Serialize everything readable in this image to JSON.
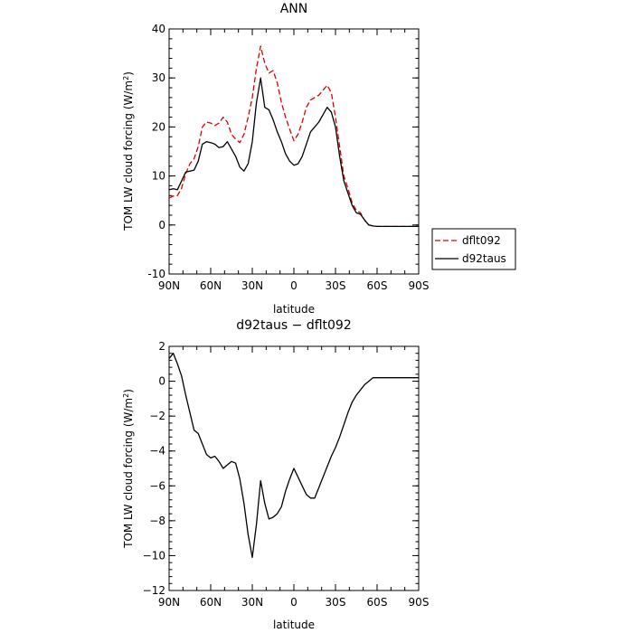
{
  "chart_data": [
    {
      "type": "line",
      "title": "ANN",
      "xlabel": "latitude",
      "ylabel": "TOM LW cloud forcing (W/m²)",
      "ylabel_main": "TOM LW cloud forcing (W/m",
      "ylabel_sup": "2",
      "ylabel_close": ")",
      "xlim": [
        90,
        -90
      ],
      "ylim": [
        -10,
        40
      ],
      "xticks": [
        90,
        60,
        30,
        0,
        -30,
        -60,
        -90
      ],
      "xtick_labels": [
        "90N",
        "60N",
        "30N",
        "0",
        "30S",
        "60S",
        "90S"
      ],
      "yticks": [
        -10,
        0,
        10,
        20,
        30,
        40
      ],
      "ytick_labels": [
        "-10",
        "0",
        "10",
        "20",
        "30",
        "40"
      ],
      "legend_position": "right",
      "series": [
        {
          "name": "dflt092",
          "color": "#e00000",
          "dash": "dashed",
          "x": [
            90,
            87,
            84,
            81,
            78,
            75,
            72,
            69,
            66,
            63,
            60,
            57,
            54,
            51,
            48,
            45,
            42,
            39,
            36,
            33,
            30,
            27,
            24,
            21,
            18,
            15,
            12,
            9,
            6,
            3,
            0,
            -3,
            -6,
            -9,
            -12,
            -15,
            -18,
            -21,
            -24,
            -27,
            -30,
            -33,
            -36,
            -39,
            -42,
            -45,
            -48,
            -51,
            -54,
            -57,
            -60,
            -63,
            -66,
            -69,
            -72,
            -75,
            -78,
            -81,
            -84,
            -87,
            -90
          ],
          "y": [
            5.5,
            5.9,
            6.0,
            7.5,
            10.5,
            12.5,
            13.5,
            16.0,
            20.0,
            21.0,
            20.8,
            20.3,
            20.8,
            22.0,
            21.0,
            18.5,
            17.5,
            16.8,
            18.5,
            22.0,
            26.0,
            32.0,
            36.5,
            33.0,
            31.0,
            31.5,
            29.0,
            25.0,
            22.0,
            19.5,
            17.2,
            18.5,
            21.0,
            24.0,
            25.5,
            26.0,
            26.5,
            27.5,
            28.5,
            27.0,
            22.0,
            16.0,
            10.0,
            7.5,
            4.5,
            3.0,
            2.5,
            1.0,
            0.0,
            -0.2,
            -0.3,
            -0.3,
            -0.3,
            -0.3,
            -0.3,
            -0.3,
            -0.3,
            -0.3,
            -0.3,
            -0.3,
            -0.3
          ]
        },
        {
          "name": "d92taus",
          "color": "#000000",
          "dash": "solid",
          "x": [
            90,
            87,
            84,
            81,
            78,
            75,
            72,
            69,
            66,
            63,
            60,
            57,
            54,
            51,
            48,
            45,
            42,
            39,
            36,
            33,
            30,
            27,
            24,
            21,
            18,
            15,
            12,
            9,
            6,
            3,
            0,
            -3,
            -6,
            -9,
            -12,
            -15,
            -18,
            -21,
            -24,
            -27,
            -30,
            -33,
            -36,
            -39,
            -42,
            -45,
            -48,
            -51,
            -54,
            -57,
            -60,
            -63,
            -66,
            -69,
            -72,
            -75,
            -78,
            -81,
            -84,
            -87,
            -90
          ],
          "y": [
            7.2,
            7.4,
            7.2,
            9.0,
            10.8,
            11.0,
            11.2,
            13.0,
            16.5,
            17.0,
            16.8,
            16.5,
            15.8,
            16.0,
            17.0,
            15.5,
            14.0,
            11.8,
            11.0,
            12.5,
            17.0,
            25.0,
            30.0,
            24.0,
            23.5,
            21.5,
            19.0,
            17.0,
            14.5,
            13.0,
            12.2,
            12.5,
            14.0,
            16.5,
            19.0,
            20.0,
            21.0,
            22.5,
            24.0,
            23.0,
            20.0,
            14.0,
            9.0,
            6.5,
            4.0,
            2.5,
            2.2,
            1.0,
            0.0,
            -0.2,
            -0.3,
            -0.3,
            -0.3,
            -0.3,
            -0.3,
            -0.3,
            -0.3,
            -0.3,
            -0.3,
            -0.3,
            -0.3
          ]
        }
      ]
    },
    {
      "type": "line",
      "title": "d92taus − dflt092",
      "xlabel": "latitude",
      "ylabel": "TOM LW cloud forcing (W/m²)",
      "ylabel_main": "TOM LW cloud forcing (W/m",
      "ylabel_sup": "2",
      "ylabel_close": ")",
      "xlim": [
        90,
        -90
      ],
      "ylim": [
        -12,
        2
      ],
      "xticks": [
        90,
        60,
        30,
        0,
        -30,
        -60,
        -90
      ],
      "xtick_labels": [
        "90N",
        "60N",
        "30N",
        "0",
        "30S",
        "60S",
        "90S"
      ],
      "yticks": [
        -12,
        -10,
        -8,
        -6,
        -4,
        -2,
        0,
        2
      ],
      "ytick_labels": [
        "−12",
        "−10",
        "−8",
        "−6",
        "−4",
        "−2",
        "0",
        "2"
      ],
      "series": [
        {
          "color": "#000000",
          "dash": "solid",
          "x": [
            90,
            87,
            84,
            81,
            78,
            75,
            72,
            69,
            66,
            63,
            60,
            57,
            54,
            51,
            48,
            45,
            42,
            39,
            36,
            33,
            30,
            27,
            24,
            21,
            18,
            15,
            12,
            9,
            6,
            3,
            0,
            -3,
            -6,
            -9,
            -12,
            -15,
            -18,
            -21,
            -24,
            -27,
            -30,
            -33,
            -36,
            -39,
            -42,
            -45,
            -48,
            -51,
            -54,
            -57,
            -60,
            -63,
            -66,
            -69,
            -72,
            -75,
            -78,
            -81,
            -84,
            -87,
            -90
          ],
          "y": [
            1.3,
            1.6,
            1.0,
            0.3,
            -0.8,
            -1.8,
            -2.8,
            -3.0,
            -3.6,
            -4.2,
            -4.4,
            -4.3,
            -4.6,
            -5.0,
            -4.8,
            -4.6,
            -4.7,
            -5.6,
            -7.0,
            -8.8,
            -10.1,
            -8.2,
            -5.7,
            -7.0,
            -7.9,
            -7.8,
            -7.6,
            -7.2,
            -6.3,
            -5.6,
            -5.0,
            -5.5,
            -6.0,
            -6.5,
            -6.7,
            -6.7,
            -6.1,
            -5.5,
            -4.9,
            -4.3,
            -3.8,
            -3.2,
            -2.5,
            -1.8,
            -1.2,
            -0.8,
            -0.5,
            -0.2,
            0.0,
            0.2,
            0.2,
            0.2,
            0.2,
            0.2,
            0.2,
            0.2,
            0.2,
            0.2,
            0.2,
            0.2,
            0.2
          ]
        }
      ]
    }
  ]
}
